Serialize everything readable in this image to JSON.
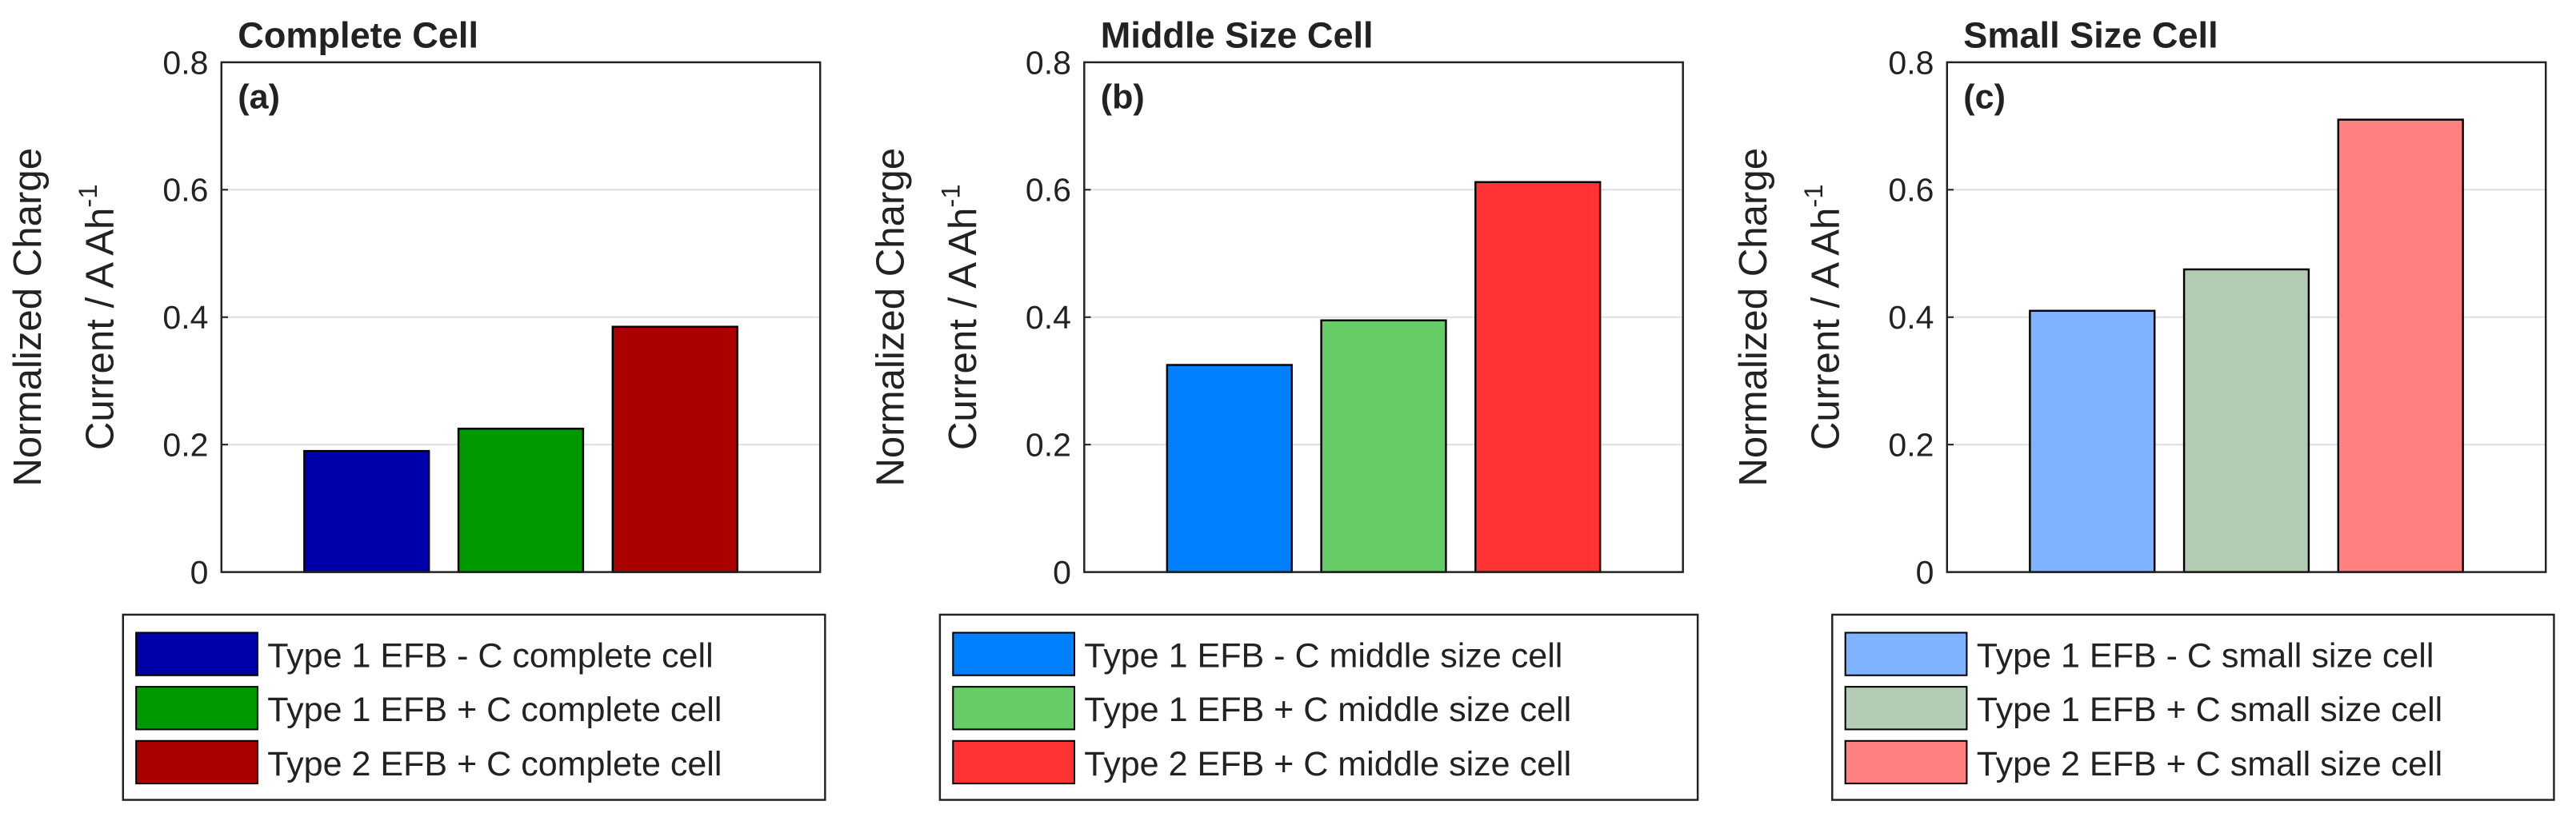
{
  "chart_data": [
    {
      "type": "bar",
      "title": "Complete Cell",
      "panel_label": "(a)",
      "ylabel_lines": [
        "Normalized Charge",
        "Current / A Ah"
      ],
      "ylabel_superscript": "-1",
      "ylim": [
        0,
        0.8
      ],
      "yticks": [
        0,
        0.2,
        0.4,
        0.6,
        0.8
      ],
      "grid": true,
      "series": [
        {
          "name": "Type 1 EFB - C complete cell",
          "color": "#0000aa",
          "values": [
            0.19
          ]
        },
        {
          "name": "Type 1 EFB + C complete cell",
          "color": "#009900",
          "values": [
            0.225
          ]
        },
        {
          "name": "Type 2 EFB + C complete cell",
          "color": "#aa0000",
          "values": [
            0.385
          ]
        }
      ]
    },
    {
      "type": "bar",
      "title": "Middle Size Cell",
      "panel_label": "(b)",
      "ylabel_lines": [
        "Normalized Charge",
        "Current / A Ah"
      ],
      "ylabel_superscript": "-1",
      "ylim": [
        0,
        0.8
      ],
      "yticks": [
        0,
        0.2,
        0.4,
        0.6,
        0.8
      ],
      "grid": true,
      "series": [
        {
          "name": "Type 1 EFB - C middle size cell",
          "color": "#0080ff",
          "values": [
            0.325
          ]
        },
        {
          "name": "Type 1 EFB + C middle size cell",
          "color": "#66cc66",
          "values": [
            0.395
          ]
        },
        {
          "name": "Type 2 EFB + C middle size cell",
          "color": "#ff3333",
          "values": [
            0.612
          ]
        }
      ]
    },
    {
      "type": "bar",
      "title": "Small Size Cell",
      "panel_label": "(c)",
      "ylabel_lines": [
        "Normalized Charge",
        "Current / A Ah"
      ],
      "ylabel_superscript": "-1",
      "ylim": [
        0,
        0.8
      ],
      "yticks": [
        0,
        0.2,
        0.4,
        0.6,
        0.8
      ],
      "grid": true,
      "series": [
        {
          "name": "Type 1 EFB - C small size cell",
          "color": "#80b3ff",
          "values": [
            0.41
          ]
        },
        {
          "name": "Type 1 EFB + C small size cell",
          "color": "#b3ccb3",
          "values": [
            0.475
          ]
        },
        {
          "name": "Type 2 EFB + C small size cell",
          "color": "#ff8080",
          "values": [
            0.71
          ]
        }
      ]
    }
  ]
}
